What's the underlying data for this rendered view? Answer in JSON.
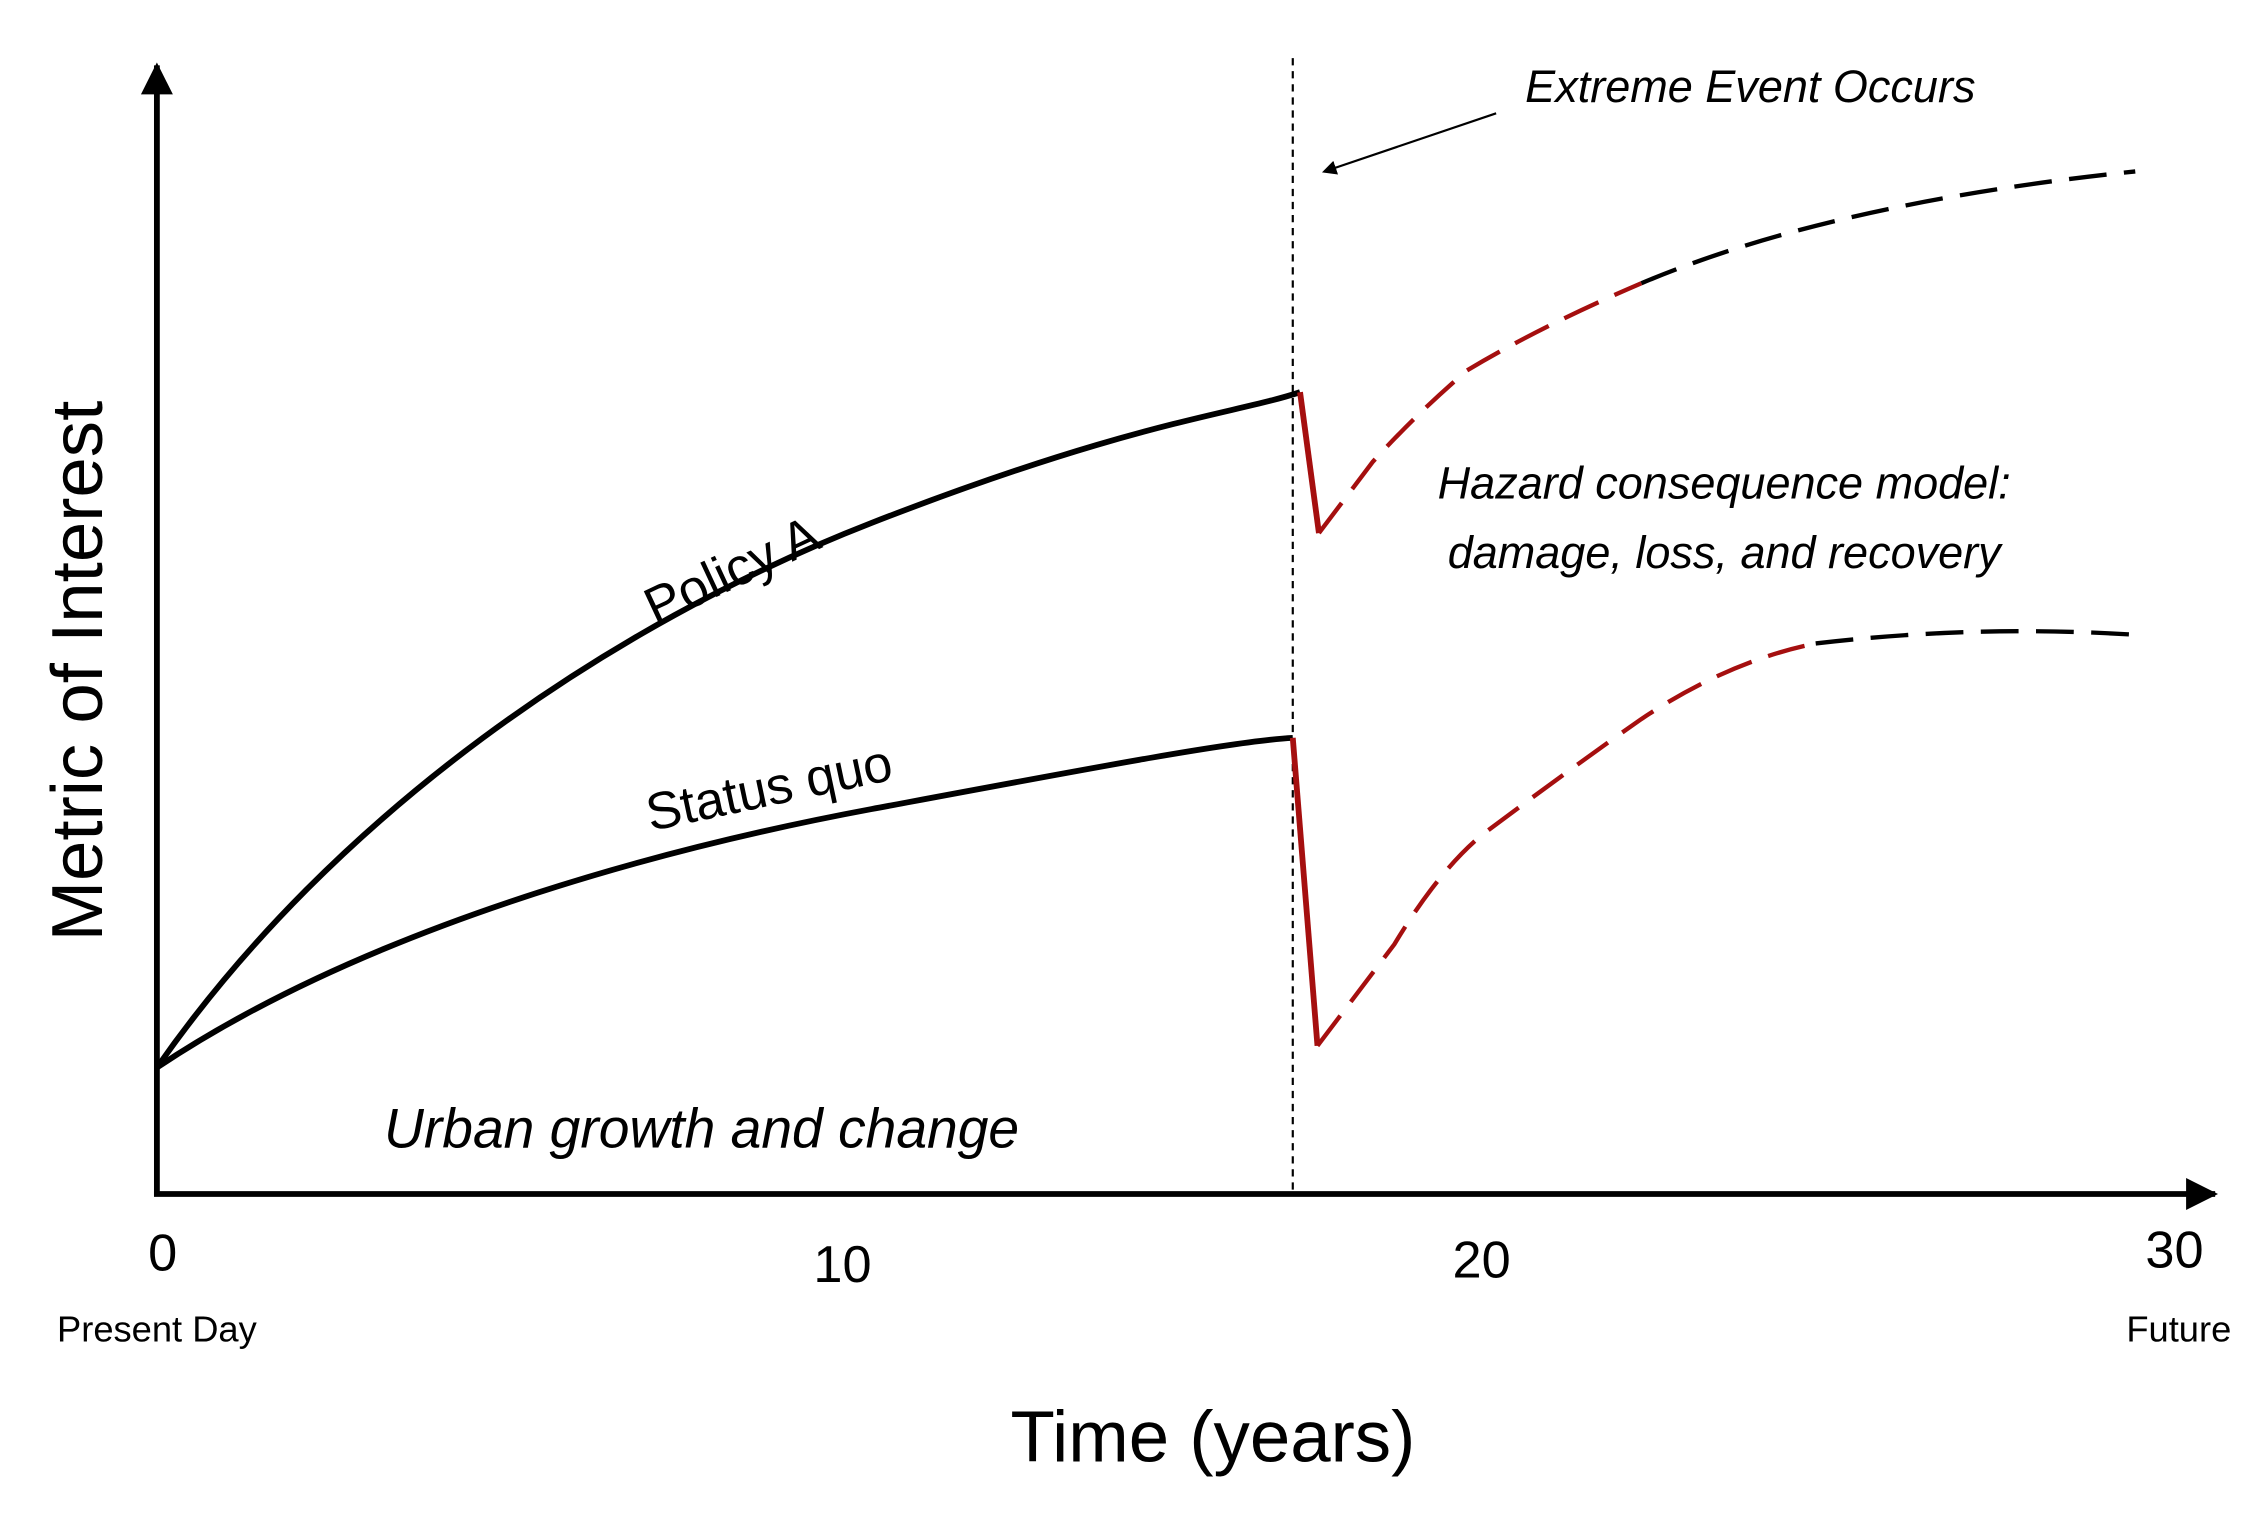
{
  "axes": {
    "y_label": "Metric of Interest",
    "x_label": "Time (years)",
    "x_ticks": [
      "0",
      "10",
      "20",
      "30"
    ],
    "x_start_label": "Present Day",
    "x_end_label": "Future"
  },
  "curves": {
    "upper": "Policy A",
    "lower": "Status quo"
  },
  "annotations": {
    "event": "Extreme Event Occurs",
    "hazard_line1": "Hazard consequence model:",
    "hazard_line2": "damage, loss, and recovery",
    "growth": "Urban growth and change"
  }
}
